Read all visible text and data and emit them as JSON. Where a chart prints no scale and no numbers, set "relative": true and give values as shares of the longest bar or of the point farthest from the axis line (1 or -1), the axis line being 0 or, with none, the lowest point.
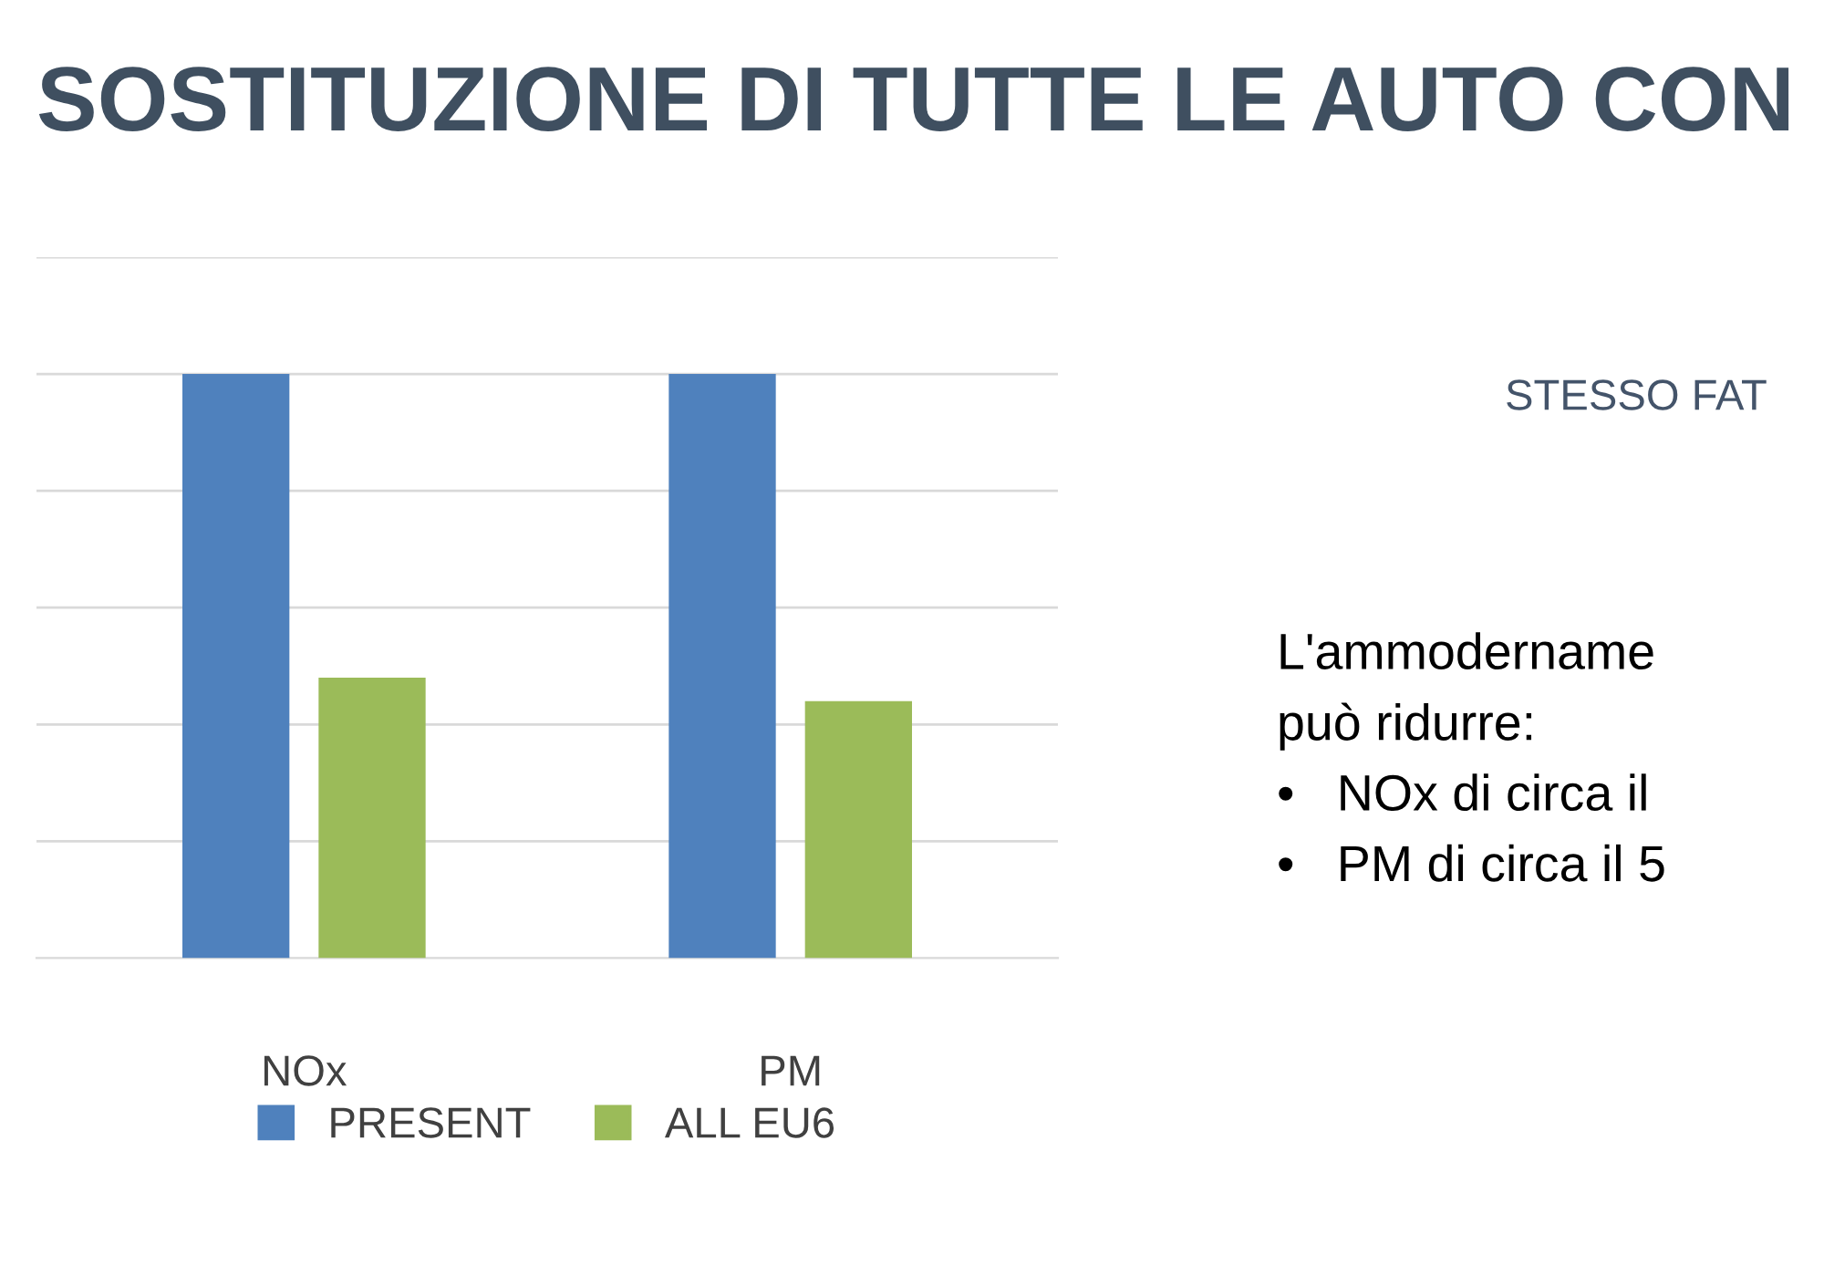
{
  "chart_data": {
    "type": "bar",
    "title": "SOSTITUZIONE DI TUTTE LE AUTO CON",
    "categories": [
      "NOx",
      "PM"
    ],
    "series": [
      {
        "name": "PRESENT",
        "color": "#4f81bd",
        "values": [
          1,
          1
        ]
      },
      {
        "name": "ALL EU6",
        "color": "#9bbb59",
        "values": [
          0.48,
          0.44
        ]
      }
    ],
    "relative": true,
    "grid": "y",
    "legend": "bottom",
    "annotations": [
      "STESSO FAT",
      "L'ammodername",
      "può ridurre:",
      "•   NOx di circa il",
      "•   PM di circa il 5"
    ]
  }
}
